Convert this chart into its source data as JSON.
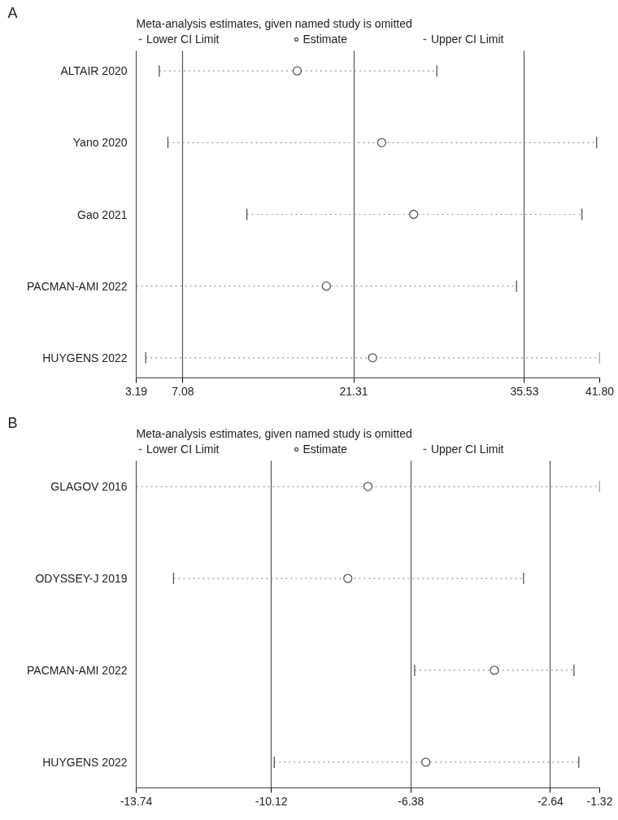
{
  "chart_data": [
    {
      "type": "scatter",
      "orientation": "horizontal",
      "title": "Meta-analysis estimates, given named study is omitted",
      "annotations": [
        "A",
        "Lower CI Limit",
        "Upper CI Limit"
      ],
      "categories": [
        "ALTAIR 2020",
        "Yano 2020",
        "Gao 2021",
        "PACMAN-AMI 2022",
        "HUYGENS 2022"
      ],
      "series": [
        {
          "name": "Estimate",
          "color": "#555555",
          "values": [
            16.6,
            23.64,
            26.3,
            19.03,
            22.88
          ],
          "errors": [
            [
              5.11,
              28.23
            ],
            [
              5.83,
              41.54
            ],
            [
              12.41,
              40.32
            ],
            [
              3.19,
              34.87
            ],
            [
              3.98,
              41.8
            ]
          ]
        }
      ],
      "marker": "circle",
      "line_style": "dotted",
      "xlim": [
        3.19,
        41.8
      ],
      "xticks": [
        {
          "value": 3.19,
          "label": "3.19"
        },
        7.08,
        21.31,
        35.53,
        {
          "value": 41.8,
          "label": "41.80"
        }
      ],
      "grid": "x",
      "legend": "top"
    },
    {
      "type": "scatter",
      "orientation": "horizontal",
      "title": "Meta-analysis estimates, given named study is omitted",
      "annotations": [
        "B",
        "Lower CI Limit",
        "Upper CI Limit"
      ],
      "categories": [
        "GLAGOV 2016",
        "ODYSSEY-J 2019",
        "PACMAN-AMI 2022",
        "HUYGENS 2022"
      ],
      "series": [
        {
          "name": "Estimate",
          "color": "#555555",
          "values": [
            -7.53,
            -8.07,
            -4.14,
            -5.98
          ],
          "errors": [
            [
              -13.74,
              -1.32
            ],
            [
              -12.74,
              -3.36
            ],
            [
              -6.28,
              -2.01
            ],
            [
              -10.04,
              -1.88
            ]
          ]
        }
      ],
      "marker": "circle",
      "line_style": "dotted",
      "xlim": [
        -13.74,
        -1.32
      ],
      "xticks": [
        -13.74,
        -10.12,
        -6.38,
        -2.64,
        -1.32
      ],
      "grid": "x",
      "legend": "top"
    }
  ]
}
